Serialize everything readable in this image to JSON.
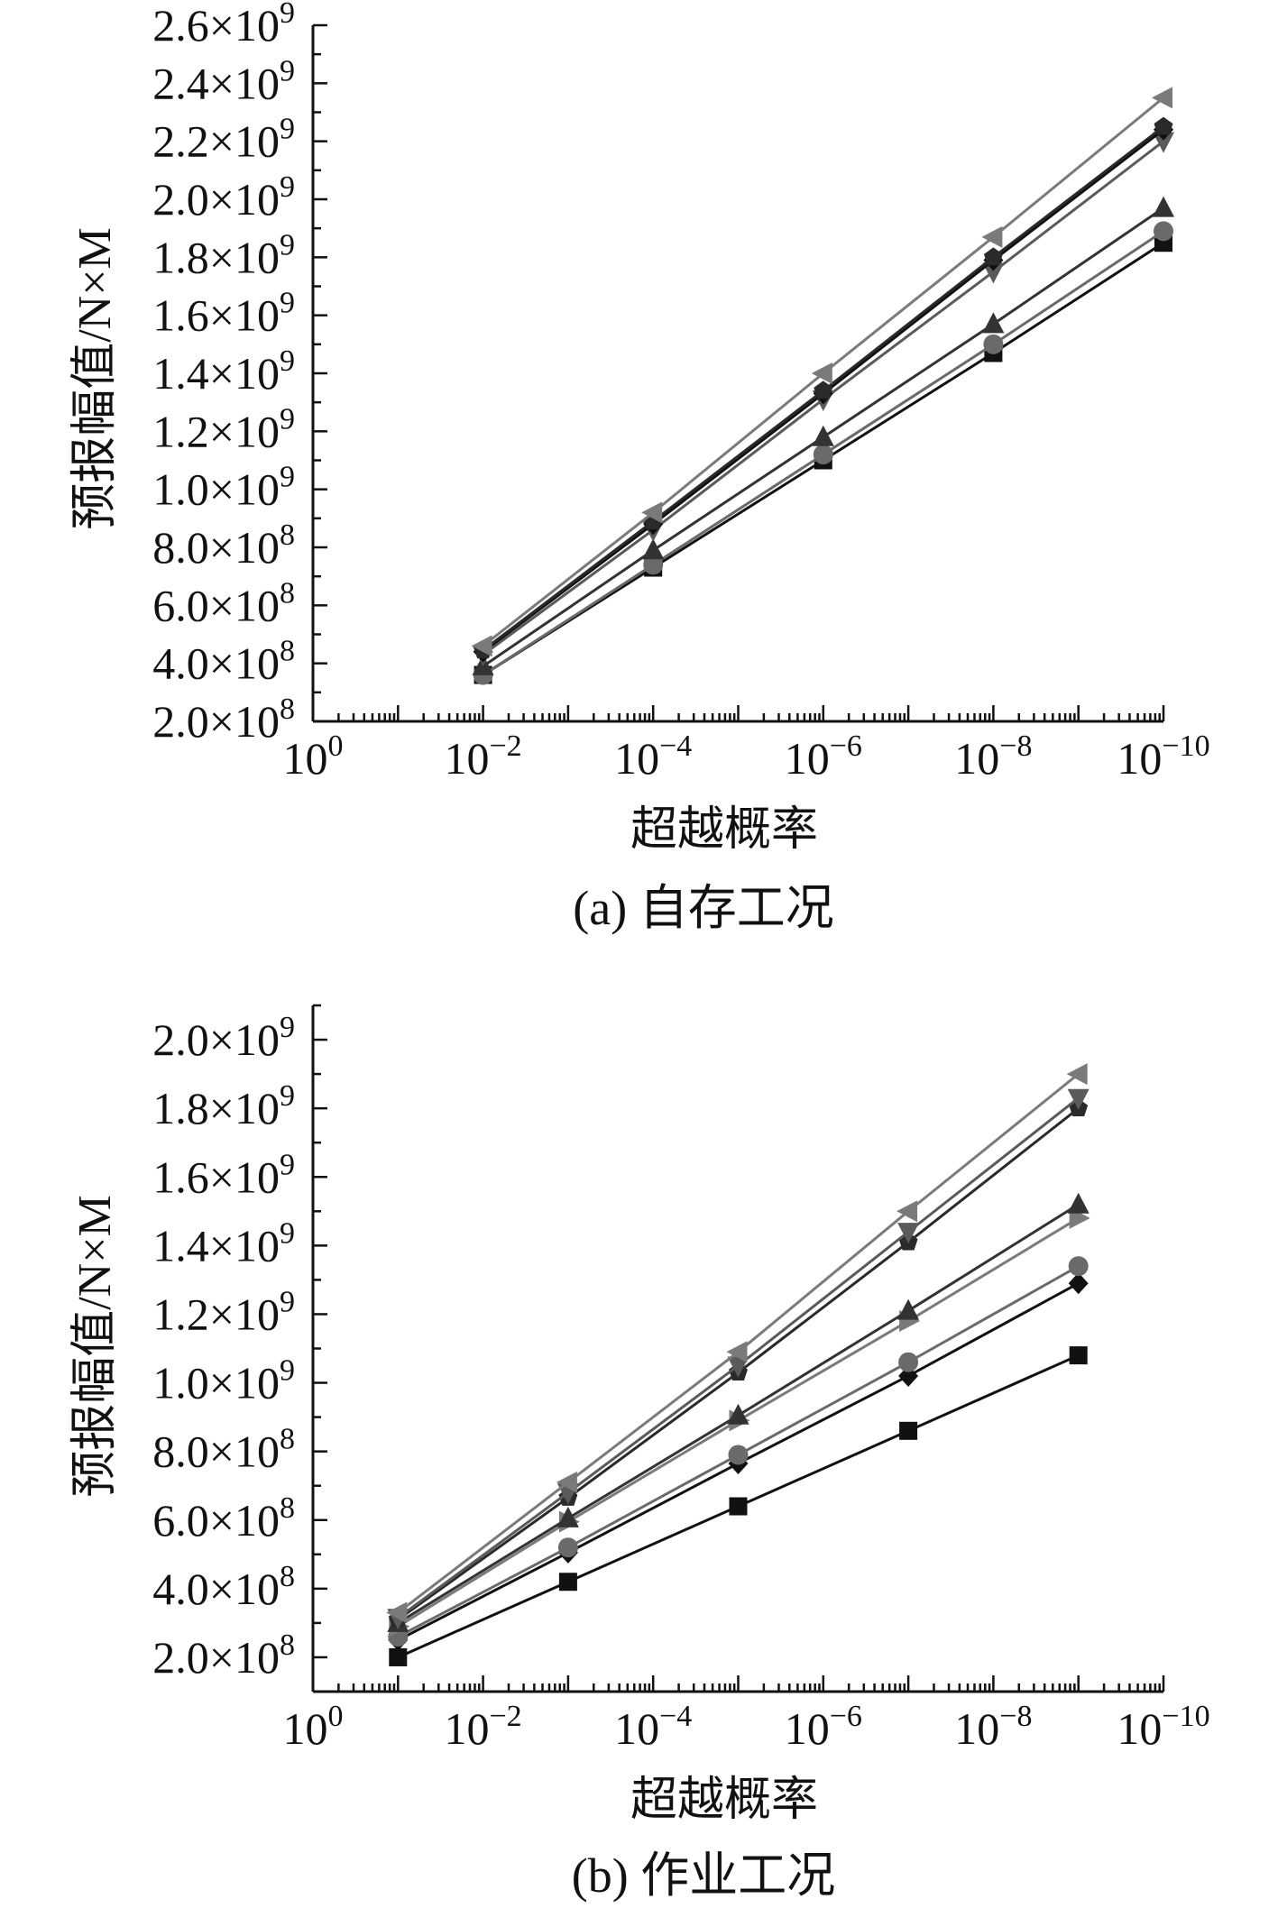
{
  "chart_data": [
    {
      "type": "line",
      "caption": "(a) 自存工况",
      "xlabel": "超越概率",
      "ylabel": "预报幅值/N×M",
      "x_scale": "log-reversed",
      "xlim": [
        1,
        1e-10
      ],
      "ylim": [
        200000000.0,
        2600000000.0
      ],
      "x_ticks": [
        {
          "mant": "10",
          "exp": "0"
        },
        {
          "mant": "10",
          "exp": "−2"
        },
        {
          "mant": "10",
          "exp": "−4"
        },
        {
          "mant": "10",
          "exp": "−6"
        },
        {
          "mant": "10",
          "exp": "−8"
        },
        {
          "mant": "10",
          "exp": "−10"
        }
      ],
      "y_ticks": [
        {
          "mant": "2.0×10",
          "exp": "8"
        },
        {
          "mant": "4.0×10",
          "exp": "8"
        },
        {
          "mant": "6.0×10",
          "exp": "8"
        },
        {
          "mant": "8.0×10",
          "exp": "8"
        },
        {
          "mant": "1.0×10",
          "exp": "9"
        },
        {
          "mant": "1.2×10",
          "exp": "9"
        },
        {
          "mant": "1.4×10",
          "exp": "9"
        },
        {
          "mant": "1.6×10",
          "exp": "9"
        },
        {
          "mant": "1.8×10",
          "exp": "9"
        },
        {
          "mant": "2.0×10",
          "exp": "9"
        },
        {
          "mant": "2.2×10",
          "exp": "9"
        },
        {
          "mant": "2.4×10",
          "exp": "9"
        },
        {
          "mant": "2.6×10",
          "exp": "9"
        }
      ],
      "x": [
        0.01,
        0.0001,
        1e-06,
        1e-08,
        1e-10
      ],
      "series": [
        {
          "marker": "square",
          "color": "#111111",
          "values": [
            360000000.0,
            730000000.0,
            1100000000.0,
            1470000000.0,
            1850000000.0
          ]
        },
        {
          "marker": "circle",
          "color": "#6a6a6a",
          "values": [
            360000000.0,
            740000000.0,
            1120000000.0,
            1500000000.0,
            1890000000.0
          ]
        },
        {
          "marker": "triangle-up",
          "color": "#333333",
          "values": [
            390000000.0,
            790000000.0,
            1180000000.0,
            1570000000.0,
            1970000000.0
          ]
        },
        {
          "marker": "triangle-down",
          "color": "#5a5a5a",
          "values": [
            430000000.0,
            860000000.0,
            1310000000.0,
            1750000000.0,
            2200000000.0
          ]
        },
        {
          "marker": "diamond",
          "color": "#111111",
          "values": [
            440000000.0,
            880000000.0,
            1330000000.0,
            1790000000.0,
            2240000000.0
          ]
        },
        {
          "marker": "pentagon",
          "color": "#2a2a2a",
          "values": [
            445000000.0,
            890000000.0,
            1340000000.0,
            1800000000.0,
            2250000000.0
          ]
        },
        {
          "marker": "triangle-left",
          "color": "#7a7a7a",
          "values": [
            460000000.0,
            920000000.0,
            1400000000.0,
            1870000000.0,
            2350000000.0
          ]
        }
      ]
    },
    {
      "type": "line",
      "caption": "(b) 作业工况",
      "xlabel": "超越概率",
      "ylabel": "预报幅值/N×M",
      "x_scale": "log-reversed",
      "xlim": [
        1,
        1e-10
      ],
      "ylim": [
        100000000.0,
        2100000000.0
      ],
      "x_ticks": [
        {
          "mant": "10",
          "exp": "0"
        },
        {
          "mant": "10",
          "exp": "−2"
        },
        {
          "mant": "10",
          "exp": "−4"
        },
        {
          "mant": "10",
          "exp": "−6"
        },
        {
          "mant": "10",
          "exp": "−8"
        },
        {
          "mant": "10",
          "exp": "−10"
        }
      ],
      "y_ticks": [
        {
          "mant": "2.0×10",
          "exp": "8"
        },
        {
          "mant": "4.0×10",
          "exp": "8"
        },
        {
          "mant": "6.0×10",
          "exp": "8"
        },
        {
          "mant": "8.0×10",
          "exp": "8"
        },
        {
          "mant": "1.0×10",
          "exp": "9"
        },
        {
          "mant": "1.2×10",
          "exp": "9"
        },
        {
          "mant": "1.4×10",
          "exp": "9"
        },
        {
          "mant": "1.6×10",
          "exp": "9"
        },
        {
          "mant": "1.8×10",
          "exp": "9"
        },
        {
          "mant": "2.0×10",
          "exp": "9"
        }
      ],
      "x": [
        0.1,
        0.001,
        1e-05,
        1e-07,
        1e-09
      ],
      "series": [
        {
          "marker": "square",
          "color": "#111111",
          "values": [
            200000000.0,
            420000000.0,
            640000000.0,
            860000000.0,
            1080000000.0
          ]
        },
        {
          "marker": "diamond",
          "color": "#111111",
          "values": [
            250000000.0,
            505000000.0,
            765000000.0,
            1020000000.0,
            1290000000.0
          ]
        },
        {
          "marker": "circle",
          "color": "#6a6a6a",
          "values": [
            260000000.0,
            520000000.0,
            790000000.0,
            1060000000.0,
            1340000000.0
          ]
        },
        {
          "marker": "triangle-right",
          "color": "#7a7a7a",
          "values": [
            290000000.0,
            595000000.0,
            890000000.0,
            1180000000.0,
            1480000000.0
          ]
        },
        {
          "marker": "triangle-up",
          "color": "#333333",
          "values": [
            300000000.0,
            605000000.0,
            905000000.0,
            1210000000.0,
            1520000000.0
          ]
        },
        {
          "marker": "pentagon",
          "color": "#2a2a2a",
          "values": [
            310000000.0,
            665000000.0,
            1030000000.0,
            1410000000.0,
            1800000000.0
          ]
        },
        {
          "marker": "triangle-down",
          "color": "#5a5a5a",
          "values": [
            315000000.0,
            680000000.0,
            1050000000.0,
            1440000000.0,
            1830000000.0
          ]
        },
        {
          "marker": "triangle-left",
          "color": "#7a7a7a",
          "values": [
            330000000.0,
            710000000.0,
            1090000000.0,
            1500000000.0,
            1900000000.0
          ]
        }
      ]
    }
  ]
}
